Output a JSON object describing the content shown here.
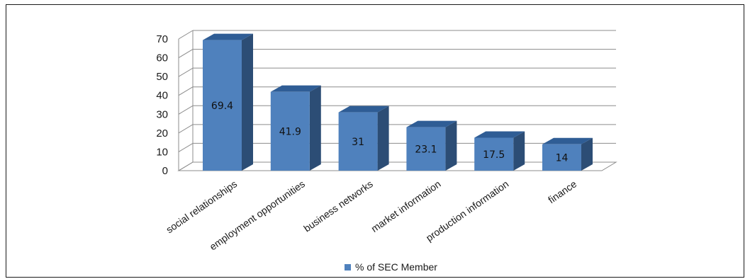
{
  "chart_data": {
    "type": "bar",
    "categories": [
      "social relationships",
      "employment opportunities",
      "business networks",
      "market information",
      "production information",
      "finance"
    ],
    "series": [
      {
        "name": "% of SEC Member",
        "values": [
          69.4,
          41.9,
          31,
          23.1,
          17.5,
          14
        ]
      }
    ],
    "data_labels": [
      "69.4",
      "41.9",
      "31",
      "23.1",
      "17.5",
      "14"
    ],
    "y_ticks": [
      "0",
      "10",
      "20",
      "30",
      "40",
      "50",
      "60",
      "70"
    ],
    "ylim": [
      0,
      70
    ],
    "title": "",
    "xlabel": "",
    "ylabel": "",
    "grid": true,
    "legend_position": "bottom",
    "bar_style": "3d-column",
    "colors": {
      "bar_front": "#4f81bd",
      "bar_top": "#2f5d95",
      "bar_side": "#2c4d75",
      "grid": "#8c8c8c"
    }
  }
}
